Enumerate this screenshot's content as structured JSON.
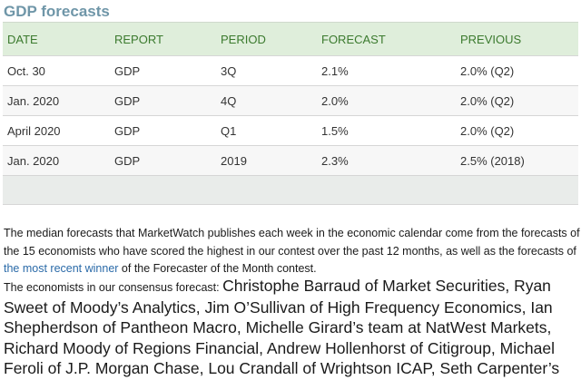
{
  "title": "GDP forecasts",
  "table": {
    "headers": [
      "DATE",
      "REPORT",
      "PERIOD",
      "FORECAST",
      "PREVIOUS"
    ],
    "rows": [
      [
        "Oct. 30",
        "GDP",
        "3Q",
        "2.1%",
        "2.0% (Q2)"
      ],
      [
        "Jan. 2020",
        "GDP",
        "4Q",
        "2.0%",
        "2.0% (Q2)"
      ],
      [
        "April 2020",
        "GDP",
        "Q1",
        "1.5%",
        "2.0% (Q2)"
      ],
      [
        "Jan. 2020",
        "GDP",
        "2019",
        "2.3%",
        "2.5% (2018)"
      ]
    ]
  },
  "paragraph": {
    "line1": "The median forecasts that MarketWatch publishes each week in the economic calendar come from the forecasts of",
    "line2": "the 15 economists who have scored the highest in our contest over the past 12 months, as well as the forecasts of",
    "link": "the most recent winner",
    "line3_rest": " of the Forecaster of the Month contest."
  },
  "economists": {
    "intro": "The economists in our consensus forecast: ",
    "line1_big": "Christophe Barraud of Market Securities, Ryan",
    "line2": "Sweet of Moody’s Analytics, Jim O’Sullivan of High Frequency Economics,  Ian",
    "line3": "Shepherdson of Pantheon Macro, Michelle Girard’s team at NatWest Markets,",
    "line4": "Richard Moody of Regions Financial, Andrew Hollenhorst of Citigroup, Michael",
    "line5": "Feroli of J.P. Morgan Chase, Lou Crandall of Wrightson ICAP, Seth Carpenter’s"
  }
}
